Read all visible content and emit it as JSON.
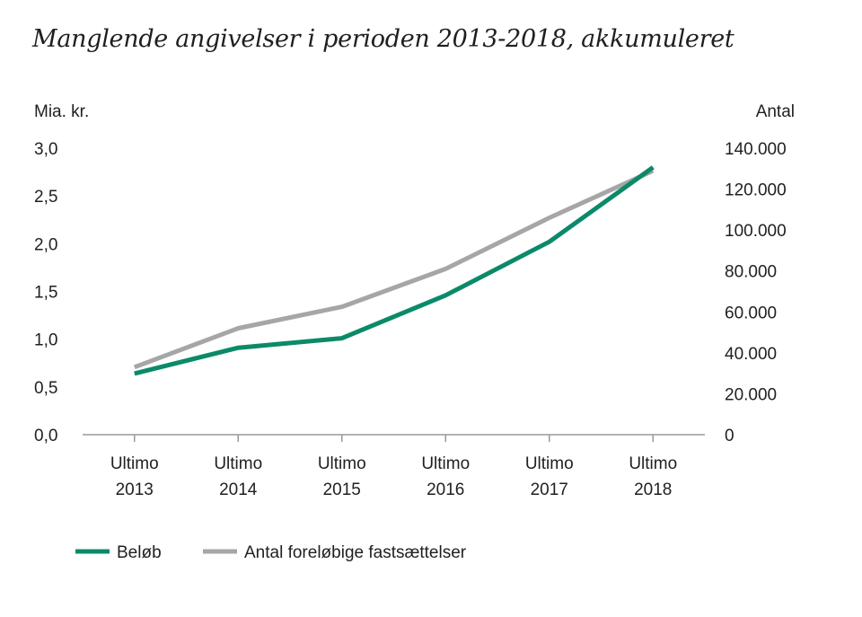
{
  "chart_data": {
    "type": "line",
    "title": "Manglende angivelser i perioden 2013-2018, akkumuleret",
    "ylabel_left": "Mia. kr.",
    "ylabel_right": "Antal",
    "categories": [
      [
        "Ultimo",
        "2013"
      ],
      [
        "Ultimo",
        "2014"
      ],
      [
        "Ultimo",
        "2015"
      ],
      [
        "Ultimo",
        "2016"
      ],
      [
        "Ultimo",
        "2017"
      ],
      [
        "Ultimo",
        "2018"
      ]
    ],
    "left_axis": {
      "ylim": [
        0,
        3
      ],
      "ticks": [
        0,
        0.5,
        1,
        1.5,
        2,
        2.5,
        3
      ],
      "tick_labels": [
        "0,0",
        "0,5",
        "1,0",
        "1,5",
        "2,0",
        "2,5",
        "3,0"
      ]
    },
    "right_axis": {
      "ylim": [
        0,
        140000
      ],
      "ticks": [
        0,
        20000,
        40000,
        60000,
        80000,
        100000,
        120000,
        140000
      ],
      "tick_labels": [
        "0",
        "20.000",
        "40.000",
        "60.000",
        "80.000",
        "100.000",
        "120.000",
        "140.000"
      ]
    },
    "series": [
      {
        "name": "Beløb",
        "axis": "left",
        "color": "#0b8a6a",
        "values": [
          0.64,
          0.91,
          1.01,
          1.46,
          2.02,
          2.8
        ]
      },
      {
        "name": "Antal foreløbige fastsættelser",
        "axis": "right",
        "color": "#a6a6a6",
        "values": [
          33000,
          52000,
          62500,
          81000,
          106000,
          129000
        ]
      }
    ],
    "legend_position": "bottom-left",
    "grid": false
  }
}
